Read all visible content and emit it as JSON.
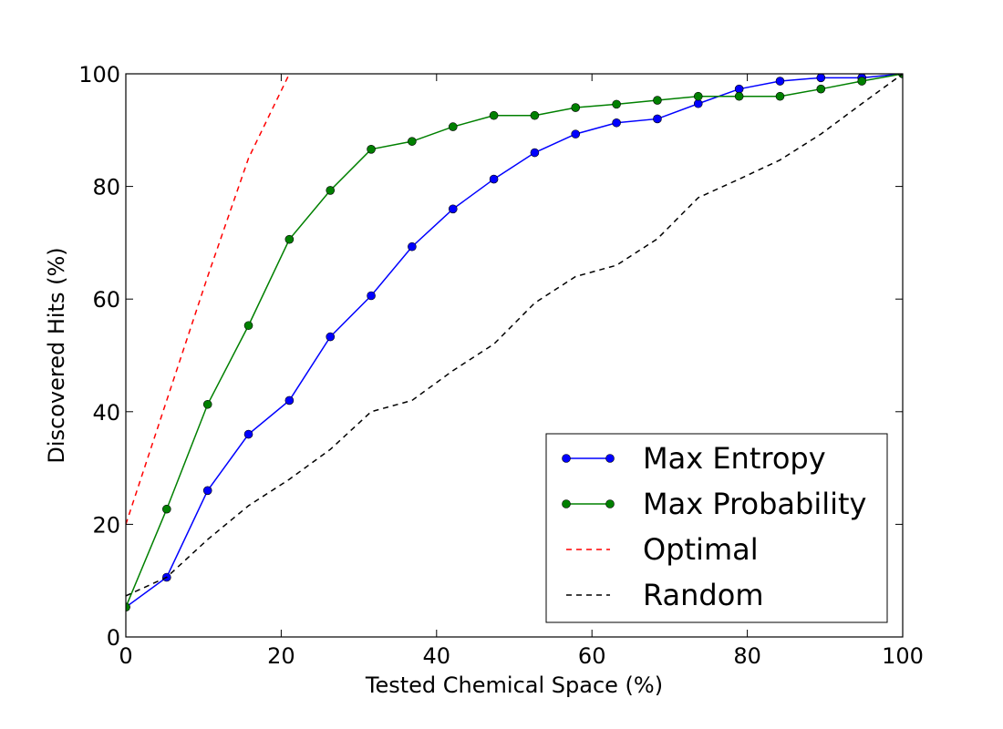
{
  "chart_data": {
    "type": "line",
    "title": "",
    "xlabel": "Tested Chemical Space (%)",
    "ylabel": "Discovered Hits (%)",
    "xlim": [
      0,
      100
    ],
    "ylim": [
      0,
      100
    ],
    "xticks": [
      "0",
      "20",
      "40",
      "60",
      "80",
      "100"
    ],
    "yticks": [
      "0",
      "20",
      "40",
      "60",
      "80",
      "100"
    ],
    "grid": false,
    "legend_position": "lower-right",
    "series": [
      {
        "name": "Max Entropy",
        "color": "#0000ff",
        "style": "solid",
        "marker": "circle",
        "x": [
          0,
          5.26,
          10.53,
          15.79,
          21.05,
          26.32,
          31.58,
          36.84,
          42.11,
          47.37,
          52.63,
          57.89,
          63.16,
          68.42,
          73.68,
          78.95,
          84.21,
          89.47,
          94.74,
          100
        ],
        "y": [
          5.3,
          10.6,
          26.0,
          36.0,
          42.0,
          53.3,
          60.6,
          69.3,
          76.0,
          81.3,
          86.0,
          89.3,
          91.3,
          92.0,
          94.7,
          97.3,
          98.7,
          99.3,
          99.3,
          100
        ]
      },
      {
        "name": "Max Probability",
        "color": "#008000",
        "style": "solid",
        "marker": "circle",
        "x": [
          0,
          5.26,
          10.53,
          15.79,
          21.05,
          26.32,
          31.58,
          36.84,
          42.11,
          47.37,
          52.63,
          57.89,
          63.16,
          68.42,
          73.68,
          78.95,
          84.21,
          89.47,
          94.74,
          100
        ],
        "y": [
          5.3,
          22.7,
          41.3,
          55.3,
          70.6,
          79.3,
          86.6,
          88.0,
          90.6,
          92.6,
          92.6,
          94.0,
          94.6,
          95.3,
          96.0,
          96.0,
          96.0,
          97.3,
          98.7,
          100
        ]
      },
      {
        "name": "Optimal",
        "color": "#ff0000",
        "style": "dashed",
        "marker": "none",
        "x": [
          0,
          5.26,
          10.53,
          15.79,
          21.05
        ],
        "y": [
          20.0,
          42.0,
          64.0,
          85.0,
          100
        ]
      },
      {
        "name": "Random",
        "color": "#000000",
        "style": "dashed",
        "marker": "none",
        "x": [
          0,
          5.26,
          10.53,
          15.79,
          21.05,
          26.32,
          31.58,
          36.84,
          42.11,
          47.37,
          52.63,
          57.89,
          63.16,
          68.42,
          73.68,
          78.95,
          84.21,
          89.47,
          94.74,
          100
        ],
        "y": [
          7.3,
          10.6,
          17.3,
          23.3,
          28.0,
          33.3,
          40.0,
          42.0,
          47.3,
          52.0,
          59.3,
          64.0,
          66.0,
          70.7,
          78.0,
          81.3,
          84.7,
          89.3,
          94.7,
          100
        ]
      }
    ]
  }
}
